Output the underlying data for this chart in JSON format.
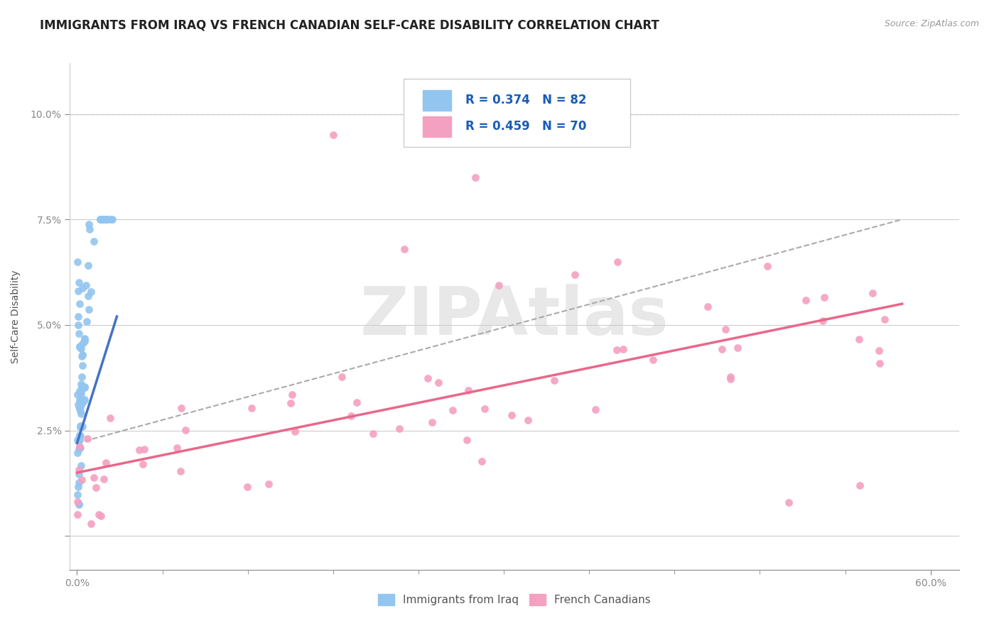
{
  "title": "IMMIGRANTS FROM IRAQ VS FRENCH CANADIAN SELF-CARE DISABILITY CORRELATION CHART",
  "source_text": "Source: ZipAtlas.com",
  "ylabel": "Self-Care Disability",
  "xlim": [
    -0.005,
    0.62
  ],
  "ylim": [
    -0.008,
    0.112
  ],
  "xtick_positions": [
    0.0,
    0.6
  ],
  "xticklabels": [
    "0.0%",
    "60.0%"
  ],
  "ytick_positions": [
    0.0,
    0.025,
    0.05,
    0.075,
    0.1
  ],
  "yticklabels": [
    "",
    "2.5%",
    "5.0%",
    "7.5%",
    "10.0%"
  ],
  "legend_R1": "R = 0.374",
  "legend_N1": "N = 82",
  "legend_R2": "R = 0.459",
  "legend_N2": "N = 70",
  "series1_color": "#92C5F0",
  "series2_color": "#F4A0C0",
  "trend1_color": "#4472C4",
  "trend2_color": "#E8688A",
  "dashed_color": "#AAAAAA",
  "watermark": "ZIPAtlas",
  "background_color": "#FFFFFF",
  "grid_color": "#CCCCCC",
  "title_fontsize": 12,
  "axis_label_fontsize": 10,
  "tick_fontsize": 10,
  "legend_color": "#1a5cb5"
}
